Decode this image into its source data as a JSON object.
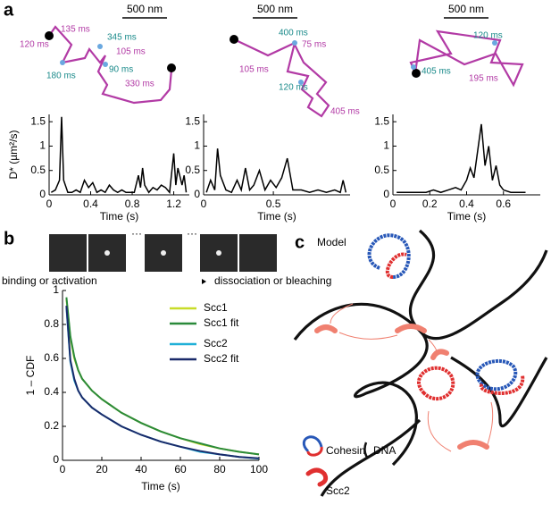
{
  "panel_labels": [
    "a",
    "b",
    "c"
  ],
  "trajectories": [
    {
      "scale_bar": "500 nm",
      "labels": [
        "135 ms",
        "120 ms",
        "345 ms",
        "180 ms",
        "105 ms",
        "90 ms",
        "330 ms"
      ]
    },
    {
      "scale_bar": "500 nm",
      "labels": [
        "400 ms",
        "75 ms",
        "105 ms",
        "120 ms",
        "405 ms"
      ]
    },
    {
      "scale_bar": "500 nm",
      "labels": [
        "120 ms",
        "405 ms",
        "195 ms"
      ]
    }
  ],
  "strip": {
    "left_label": "binding or activation",
    "right_label": "dissociation or bleaching"
  },
  "model": {
    "title": "Model",
    "legend": [
      "Cohesin",
      "DNA",
      "Scc2"
    ]
  },
  "chart_data": [
    {
      "type": "line",
      "xlabel": "Time (s)",
      "ylabel": "D* (µm²/s)",
      "color": "#000000",
      "x": [
        0.02,
        0.06,
        0.1,
        0.12,
        0.14,
        0.18,
        0.22,
        0.26,
        0.3,
        0.34,
        0.38,
        0.42,
        0.46,
        0.5,
        0.54,
        0.58,
        0.62,
        0.66,
        0.7,
        0.74,
        0.78,
        0.82,
        0.86,
        0.88,
        0.9,
        0.92,
        0.96,
        1.0,
        1.04,
        1.08,
        1.12,
        1.16,
        1.2,
        1.22,
        1.24,
        1.28,
        1.3,
        1.32
      ],
      "values": [
        0.05,
        0.1,
        0.3,
        1.6,
        0.3,
        0.05,
        0.05,
        0.1,
        0.05,
        0.3,
        0.15,
        0.25,
        0.05,
        0.1,
        0.05,
        0.2,
        0.1,
        0.05,
        0.1,
        0.05,
        0.05,
        0.05,
        0.4,
        0.15,
        0.55,
        0.2,
        0.05,
        0.15,
        0.1,
        0.2,
        0.15,
        0.05,
        0.85,
        0.2,
        0.55,
        0.2,
        0.4,
        0.05
      ],
      "xlim": [
        0,
        1.35
      ],
      "xticks": [
        0,
        0.4,
        0.8,
        1.2
      ],
      "ylim": [
        0,
        1.65
      ],
      "yticks": [
        0,
        0.5,
        1,
        1.5
      ]
    },
    {
      "type": "line",
      "xlabel": "Time (s)",
      "color": "#000000",
      "x": [
        0.02,
        0.05,
        0.08,
        0.1,
        0.12,
        0.16,
        0.2,
        0.24,
        0.27,
        0.3,
        0.33,
        0.36,
        0.4,
        0.44,
        0.48,
        0.52,
        0.56,
        0.6,
        0.64,
        0.7,
        0.76,
        0.82,
        0.88,
        0.94,
        0.98,
        1.0,
        1.02
      ],
      "values": [
        0.05,
        0.3,
        0.1,
        0.95,
        0.4,
        0.1,
        0.05,
        0.3,
        0.1,
        0.55,
        0.1,
        0.2,
        0.5,
        0.1,
        0.3,
        0.15,
        0.35,
        0.75,
        0.1,
        0.1,
        0.05,
        0.1,
        0.05,
        0.1,
        0.05,
        0.3,
        0.05
      ],
      "xlim": [
        0,
        1.05
      ],
      "xticks": [
        0,
        0.5
      ],
      "ylim": [
        0,
        1.65
      ],
      "yticks": [
        0,
        0.5,
        1,
        1.5
      ]
    },
    {
      "type": "line",
      "xlabel": "Time (s)",
      "color": "#000000",
      "x": [
        0.02,
        0.06,
        0.1,
        0.14,
        0.18,
        0.22,
        0.26,
        0.3,
        0.34,
        0.37,
        0.4,
        0.42,
        0.44,
        0.46,
        0.48,
        0.5,
        0.52,
        0.54,
        0.56,
        0.58,
        0.6,
        0.64,
        0.68,
        0.72
      ],
      "values": [
        0.05,
        0.05,
        0.05,
        0.05,
        0.05,
        0.1,
        0.05,
        0.1,
        0.15,
        0.1,
        0.3,
        0.55,
        0.35,
        0.9,
        1.45,
        0.6,
        1.0,
        0.3,
        0.6,
        0.2,
        0.1,
        0.05,
        0.05,
        0.05
      ],
      "xlim": [
        0,
        0.8
      ],
      "xticks": [
        0,
        0.2,
        0.4,
        0.6
      ],
      "ylim": [
        0,
        1.65
      ],
      "yticks": [
        0,
        0.5,
        1,
        1.5
      ]
    },
    {
      "type": "line",
      "xlabel": "Time (s)",
      "ylabel": "1 – CDF",
      "legend": "upper right",
      "x": [
        2,
        4,
        6,
        8,
        10,
        15,
        20,
        30,
        40,
        50,
        60,
        70,
        80,
        90,
        100
      ],
      "series": [
        {
          "name": "Scc1",
          "color": "#c8dc28",
          "values": [
            0.95,
            0.72,
            0.6,
            0.53,
            0.48,
            0.41,
            0.36,
            0.28,
            0.22,
            0.17,
            0.13,
            0.095,
            0.07,
            0.05,
            0.035
          ]
        },
        {
          "name": "Scc1 fit",
          "color": "#2a8a3a",
          "values": [
            0.96,
            0.73,
            0.61,
            0.53,
            0.48,
            0.41,
            0.36,
            0.28,
            0.22,
            0.17,
            0.13,
            0.1,
            0.07,
            0.05,
            0.035
          ]
        },
        {
          "name": "Scc2",
          "color": "#20b0d8",
          "values": [
            0.9,
            0.58,
            0.47,
            0.41,
            0.37,
            0.31,
            0.27,
            0.2,
            0.15,
            0.11,
            0.08,
            0.05,
            0.035,
            0.02,
            0.01
          ]
        },
        {
          "name": "Scc2 fit",
          "color": "#1a2a6a",
          "values": [
            0.91,
            0.59,
            0.48,
            0.41,
            0.37,
            0.31,
            0.27,
            0.2,
            0.15,
            0.11,
            0.08,
            0.055,
            0.035,
            0.02,
            0.012
          ]
        }
      ],
      "xlim": [
        0,
        100
      ],
      "xticks": [
        0,
        20,
        40,
        60,
        80,
        100
      ],
      "ylim": [
        0,
        1
      ],
      "yticks": [
        0,
        0.2,
        0.4,
        0.6,
        0.8,
        1
      ]
    }
  ]
}
